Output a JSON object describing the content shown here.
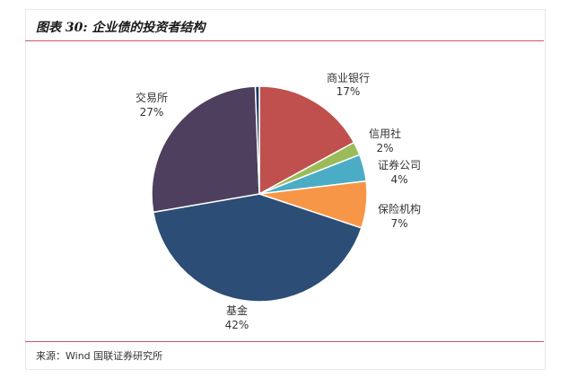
{
  "header": {
    "title": "图表 30: 企业债的投资者结构"
  },
  "footer": {
    "source": "来源：Wind 国联证券研究所"
  },
  "chart_data": {
    "type": "pie",
    "title": "图表 30: 企业债的投资者结构",
    "slices": [
      {
        "name": "商业银行",
        "label": "17%",
        "value": 17,
        "color": "#c0504d"
      },
      {
        "name": "信用社",
        "label": "2%",
        "value": 2,
        "color": "#9bbb59"
      },
      {
        "name": "证券公司",
        "label": "4%",
        "value": 4,
        "color": "#4bacc6"
      },
      {
        "name": "保险机构",
        "label": "7%",
        "value": 7,
        "color": "#f79646"
      },
      {
        "name": "基金",
        "label": "42%",
        "value": 42,
        "color": "#2c4d75"
      },
      {
        "name": "交易所",
        "label": "27%",
        "value": 27,
        "color": "#4f3f5e"
      },
      {
        "name": "",
        "label": "",
        "value": 0.6,
        "color": "#1f3b63"
      }
    ]
  }
}
